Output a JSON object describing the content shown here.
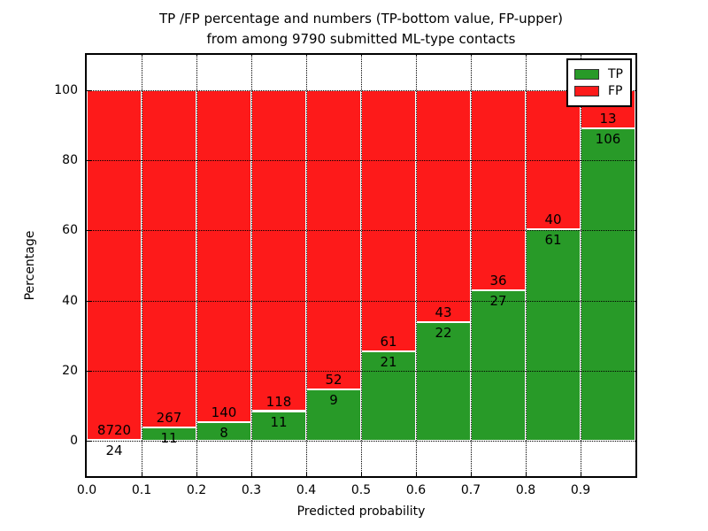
{
  "chart_data": {
    "type": "bar",
    "stacked": true,
    "normalized_to_percent": true,
    "title_lines": [
      "TP /FP percentage and numbers (TP-bottom value, FP-upper)",
      "from among 9790 submitted ML-type contacts"
    ],
    "xlabel": "Predicted probability",
    "ylabel": "Percentage",
    "xlim": [
      0.0,
      1.0
    ],
    "ylim": [
      -10,
      110
    ],
    "grid": "dotted",
    "legend_position": "upper right",
    "series": [
      {
        "name": "TP",
        "color": "#289a28"
      },
      {
        "name": "FP",
        "color": "#fd1a1a"
      }
    ],
    "x_ticks": [
      {
        "v": 0.0,
        "label": "0.0"
      },
      {
        "v": 0.1,
        "label": "0.1"
      },
      {
        "v": 0.2,
        "label": "0.2"
      },
      {
        "v": 0.3,
        "label": "0.3"
      },
      {
        "v": 0.4,
        "label": "0.4"
      },
      {
        "v": 0.5,
        "label": "0.5"
      },
      {
        "v": 0.6,
        "label": "0.6"
      },
      {
        "v": 0.7,
        "label": "0.7"
      },
      {
        "v": 0.8,
        "label": "0.8"
      },
      {
        "v": 0.9,
        "label": "0.9"
      }
    ],
    "y_ticks": [
      {
        "v": 0,
        "label": "0"
      },
      {
        "v": 20,
        "label": "20"
      },
      {
        "v": 40,
        "label": "40"
      },
      {
        "v": 60,
        "label": "60"
      },
      {
        "v": 80,
        "label": "80"
      },
      {
        "v": 100,
        "label": "100"
      }
    ],
    "bins": [
      {
        "x0": 0.0,
        "tp": 24,
        "fp": 8720
      },
      {
        "x0": 0.1,
        "tp": 11,
        "fp": 267
      },
      {
        "x0": 0.2,
        "tp": 8,
        "fp": 140
      },
      {
        "x0": 0.3,
        "tp": 11,
        "fp": 118
      },
      {
        "x0": 0.4,
        "tp": 9,
        "fp": 52
      },
      {
        "x0": 0.5,
        "tp": 21,
        "fp": 61
      },
      {
        "x0": 0.6,
        "tp": 22,
        "fp": 43
      },
      {
        "x0": 0.7,
        "tp": 27,
        "fp": 36
      },
      {
        "x0": 0.8,
        "tp": 61,
        "fp": 40
      },
      {
        "x0": 0.9,
        "tp": 106,
        "fp": 13
      }
    ]
  }
}
